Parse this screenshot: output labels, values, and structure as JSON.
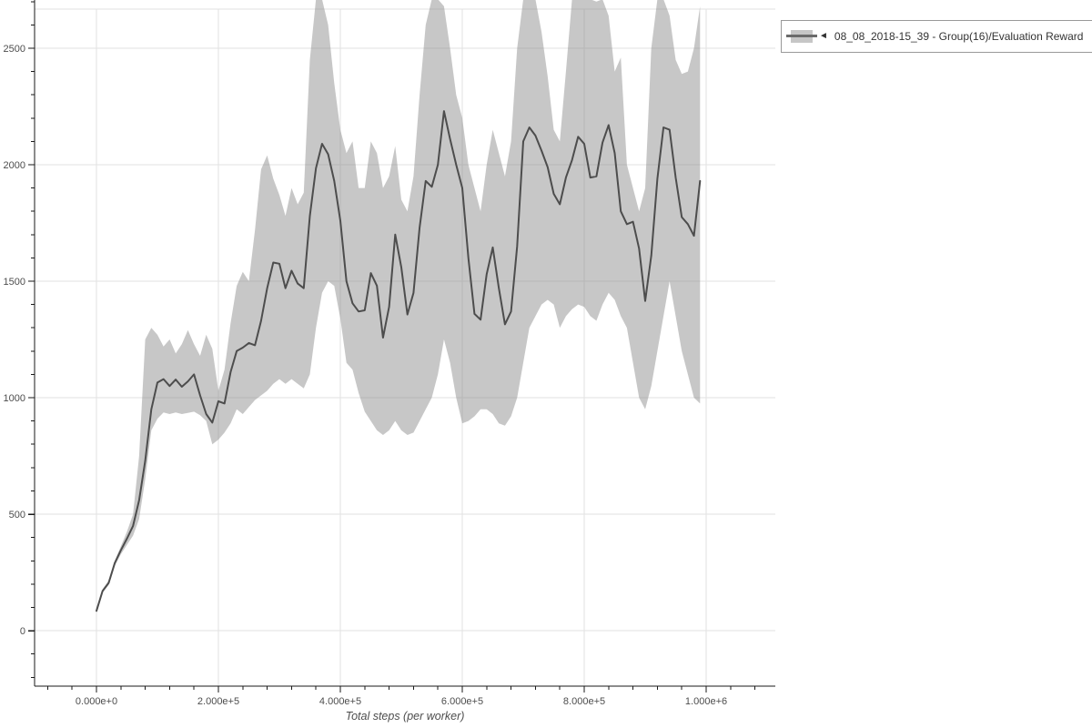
{
  "legend": {
    "marker": "◄",
    "label": "08_08_2018-15_39 - Group(16)/Evaluation Reward"
  },
  "colors": {
    "background": "#ffffff",
    "line": "#4d4d4d",
    "band": "rgba(130,130,130,0.45)",
    "grid": "#e2e2e2",
    "axis": "#1a1a1a",
    "tick_text": "#4d4d4d",
    "legend_border": "#999999",
    "legend_text": "#333333",
    "swatch_fill": "#c6c6c6",
    "swatch_line": "#6b6b6b"
  },
  "chart_data": {
    "type": "line",
    "title": "",
    "xlabel": "Total steps (per worker)",
    "ylabel": "",
    "grid": true,
    "legend_position": "outside-top-right",
    "xlim": [
      -101500,
      1113400
    ],
    "ylim": [
      -238,
      2707
    ],
    "x_ticks": [
      {
        "value": 0,
        "label": "0.000e+0"
      },
      {
        "value": 200000,
        "label": "2.000e+5"
      },
      {
        "value": 400000,
        "label": "4.000e+5"
      },
      {
        "value": 600000,
        "label": "6.000e+5"
      },
      {
        "value": 800000,
        "label": "8.000e+5"
      },
      {
        "value": 1000000,
        "label": "1.000e+6"
      }
    ],
    "y_ticks": [
      {
        "value": 0,
        "label": "0"
      },
      {
        "value": 500,
        "label": "500"
      },
      {
        "value": 1000,
        "label": "1000"
      },
      {
        "value": 1500,
        "label": "1500"
      },
      {
        "value": 2000,
        "label": "2000"
      },
      {
        "value": 2500,
        "label": "2500"
      }
    ],
    "minor_x_step": 40000,
    "minor_y_step": 100,
    "x_start": 0,
    "x_step": 10000,
    "series": [
      {
        "name": "08_08_2018-15_39 - Group(16)/Evaluation Reward",
        "mean": [
          85,
          170,
          205,
          290,
          345,
          395,
          450,
          560,
          730,
          950,
          1065,
          1080,
          1050,
          1078,
          1047,
          1070,
          1100,
          1010,
          930,
          893,
          985,
          975,
          1110,
          1200,
          1215,
          1235,
          1225,
          1330,
          1470,
          1580,
          1575,
          1470,
          1545,
          1490,
          1470,
          1780,
          1985,
          2090,
          2045,
          1930,
          1760,
          1500,
          1405,
          1370,
          1375,
          1535,
          1480,
          1258,
          1390,
          1700,
          1560,
          1357,
          1450,
          1730,
          1930,
          1905,
          2000,
          2230,
          2110,
          2000,
          1900,
          1600,
          1360,
          1335,
          1530,
          1645,
          1470,
          1315,
          1370,
          1650,
          2100,
          2160,
          2125,
          2060,
          1990,
          1875,
          1830,
          1945,
          2020,
          2120,
          2090,
          1945,
          1950,
          2095,
          2170,
          2050,
          1800,
          1745,
          1755,
          1640,
          1415,
          1610,
          1940,
          2160,
          2150,
          1945,
          1775,
          1745,
          1695,
          1930
        ],
        "upper": [
          90,
          178,
          215,
          300,
          362,
          425,
          500,
          750,
          1250,
          1300,
          1270,
          1220,
          1250,
          1190,
          1230,
          1290,
          1230,
          1180,
          1270,
          1210,
          1030,
          1120,
          1320,
          1480,
          1540,
          1500,
          1720,
          1980,
          2040,
          1940,
          1870,
          1780,
          1900,
          1830,
          1880,
          2450,
          2710,
          2710,
          2600,
          2350,
          2150,
          2050,
          2100,
          1900,
          1900,
          2100,
          2050,
          1900,
          1950,
          2080,
          1850,
          1800,
          1950,
          2300,
          2600,
          2710,
          2710,
          2680,
          2500,
          2300,
          2200,
          2000,
          1900,
          1800,
          2000,
          2150,
          2050,
          1950,
          2100,
          2500,
          2710,
          2710,
          2710,
          2570,
          2380,
          2150,
          2100,
          2400,
          2710,
          2710,
          2710,
          2710,
          2700,
          2710,
          2640,
          2400,
          2460,
          2000,
          1900,
          1800,
          1900,
          2500,
          2710,
          2710,
          2640,
          2450,
          2390,
          2400,
          2500,
          2680
        ],
        "lower": [
          80,
          163,
          197,
          278,
          328,
          368,
          408,
          480,
          650,
          860,
          910,
          937,
          930,
          937,
          930,
          935,
          940,
          925,
          900,
          800,
          820,
          850,
          890,
          950,
          930,
          960,
          990,
          1010,
          1030,
          1060,
          1080,
          1060,
          1080,
          1060,
          1040,
          1100,
          1300,
          1450,
          1500,
          1480,
          1340,
          1150,
          1120,
          1020,
          940,
          900,
          860,
          840,
          860,
          900,
          860,
          840,
          850,
          900,
          950,
          1000,
          1100,
          1250,
          1150,
          1000,
          890,
          900,
          920,
          950,
          950,
          930,
          890,
          880,
          920,
          1000,
          1150,
          1300,
          1350,
          1400,
          1420,
          1400,
          1300,
          1350,
          1380,
          1400,
          1390,
          1350,
          1330,
          1400,
          1450,
          1420,
          1350,
          1300,
          1150,
          1000,
          950,
          1050,
          1200,
          1350,
          1500,
          1350,
          1200,
          1100,
          1000,
          975
        ]
      }
    ]
  }
}
